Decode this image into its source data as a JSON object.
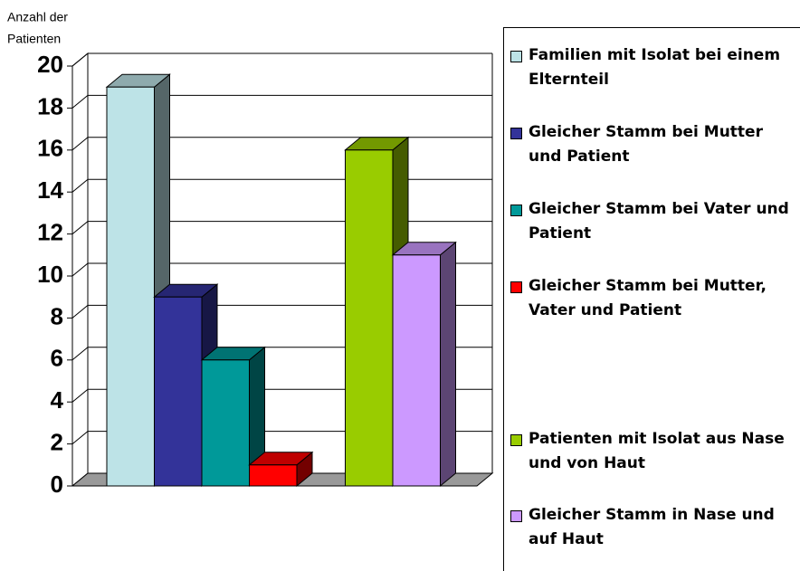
{
  "chart_data": {
    "type": "bar3d",
    "ylabel": [
      "Anzahl der",
      "Patienten"
    ],
    "categories": [
      null,
      null
    ],
    "series": [
      {
        "name": "Familien mit Isolat bei einem Elternteil",
        "color": "#bde3e7",
        "values": [
          19,
          null
        ]
      },
      {
        "name": "Gleicher Stamm bei Mutter und Patient",
        "color": "#333399",
        "values": [
          9,
          null
        ]
      },
      {
        "name": "Gleicher Stamm bei Vater und Patient",
        "color": "#009999",
        "values": [
          6,
          null
        ]
      },
      {
        "name": "Gleicher Stamm bei Mutter, Vater und Patient",
        "color": "#ff0000",
        "values": [
          1,
          null
        ]
      },
      {
        "name": "Patienten mit Isolat aus Nase und von Haut",
        "color": "#99cc00",
        "values": [
          null,
          16
        ]
      },
      {
        "name": "Gleicher Stamm in Nase und auf Haut",
        "color": "#cc99ff",
        "values": [
          null,
          11
        ]
      }
    ],
    "ylim": [
      0,
      20
    ],
    "yticks": [
      0,
      2,
      4,
      6,
      8,
      10,
      12,
      14,
      16,
      18,
      20
    ],
    "grid": true
  }
}
